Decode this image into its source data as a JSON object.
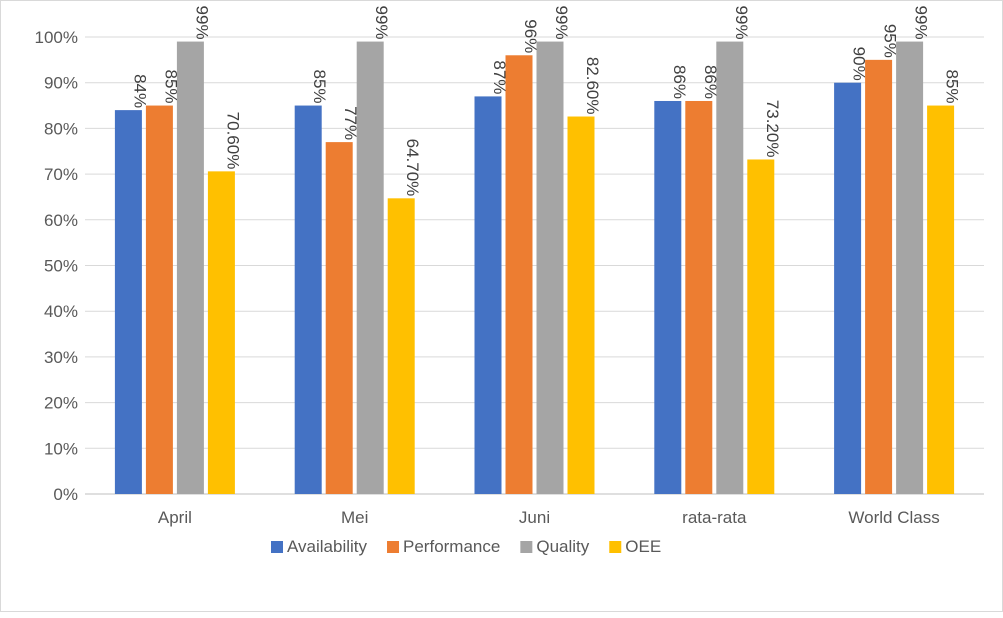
{
  "chart_data": {
    "type": "bar",
    "title": "",
    "xlabel": "",
    "ylabel": "",
    "ylim": [
      0,
      100
    ],
    "ytick_step": 10,
    "yticks": [
      "0%",
      "10%",
      "20%",
      "30%",
      "40%",
      "50%",
      "60%",
      "70%",
      "80%",
      "90%",
      "100%"
    ],
    "grid": true,
    "legend_position": "bottom",
    "categories": [
      "April",
      "Mei",
      "Juni",
      "rata-rata",
      "World Class"
    ],
    "series": [
      {
        "name": "Availability",
        "color": "#4472c4",
        "values": [
          84,
          85,
          87,
          86,
          90
        ],
        "labels": [
          "84%",
          "85%",
          "87%",
          "86%",
          "90%"
        ]
      },
      {
        "name": "Performance",
        "color": "#ed7d31",
        "values": [
          85,
          77,
          96,
          86,
          95
        ],
        "labels": [
          "85%",
          "77%",
          "96%",
          "86%",
          "95%"
        ]
      },
      {
        "name": "Quality",
        "color": "#a5a5a5",
        "values": [
          99,
          99,
          99,
          99,
          99
        ],
        "labels": [
          "99%",
          "99%",
          "99%",
          "99%",
          "99%"
        ]
      },
      {
        "name": "OEE",
        "color": "#ffc000",
        "values": [
          70.6,
          64.7,
          82.6,
          73.2,
          85
        ],
        "labels": [
          "70.60%",
          "64.70%",
          "82.60%",
          "73.20%",
          "85%"
        ]
      }
    ]
  }
}
